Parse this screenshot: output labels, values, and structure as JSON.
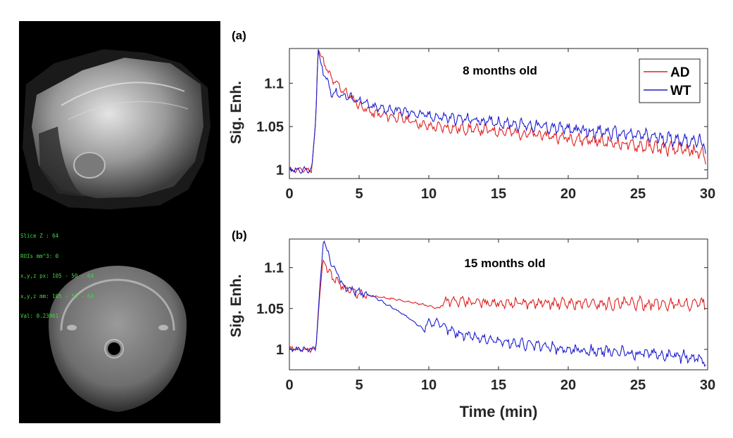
{
  "figure": {
    "mri_overlay": [
      "Slice Z : 64",
      "ROIs mm^3: 0",
      "x,y,z px: 105 - 50 - 64",
      "x,y,z mm: 105 - 50 - 64",
      "Val: 0.23961"
    ]
  },
  "chart_data": [
    {
      "type": "line",
      "panel_label": "(a)",
      "title": "8 months old",
      "xlabel": "",
      "ylabel": "Sig. Enh.",
      "xlim": [
        0,
        30
      ],
      "ylim": [
        0.99,
        1.14
      ],
      "xticks": [
        0,
        5,
        10,
        15,
        20,
        25,
        30
      ],
      "yticks": [
        1,
        1.05,
        1.1
      ],
      "ytick_labels": [
        "1",
        "1.05",
        "1.1"
      ],
      "legend": [
        "AD",
        "WT"
      ],
      "legend_position": "top-right",
      "series": [
        {
          "name": "AD",
          "color": "#e02020",
          "x": [
            0,
            1.6,
            1.9,
            2.05,
            2.3,
            3,
            4,
            5,
            6,
            8,
            10,
            15,
            20,
            25,
            29.7,
            29.9
          ],
          "y": [
            1.0,
            1.0,
            1.06,
            1.14,
            1.13,
            1.105,
            1.09,
            1.075,
            1.065,
            1.06,
            1.05,
            1.045,
            1.037,
            1.028,
            1.02,
            1.005
          ]
        },
        {
          "name": "WT",
          "color": "#1c1cd0",
          "x": [
            0,
            1.6,
            1.9,
            2.05,
            2.3,
            3,
            4,
            5,
            6,
            8,
            10,
            15,
            20,
            25,
            29.7,
            29.9
          ],
          "y": [
            1.0,
            1.0,
            1.06,
            1.14,
            1.12,
            1.09,
            1.085,
            1.08,
            1.072,
            1.068,
            1.062,
            1.055,
            1.047,
            1.04,
            1.032,
            1.015
          ]
        }
      ]
    },
    {
      "type": "line",
      "panel_label": "(b)",
      "title": "15 months old",
      "xlabel": "Time (min)",
      "ylabel": "Sig. Enh.",
      "xlim": [
        0,
        30
      ],
      "ylim": [
        0.975,
        1.135
      ],
      "xticks": [
        0,
        5,
        10,
        15,
        20,
        25,
        30
      ],
      "yticks": [
        1,
        1.05,
        1.1
      ],
      "ytick_labels": [
        "1",
        "1.05",
        "1.1"
      ],
      "series": [
        {
          "name": "AD",
          "color": "#e02020",
          "x": [
            0,
            1.9,
            2.15,
            2.4,
            3,
            4,
            5,
            6,
            8,
            9.5,
            10.8,
            11,
            12,
            15,
            20,
            25,
            29.8
          ],
          "y": [
            1.0,
            1.0,
            1.06,
            1.11,
            1.09,
            1.075,
            1.067,
            1.065,
            1.06,
            1.055,
            1.05,
            1.06,
            1.058,
            1.057,
            1.056,
            1.056,
            1.055
          ]
        },
        {
          "name": "WT",
          "color": "#1c1cd0",
          "x": [
            0,
            1.9,
            2.2,
            2.45,
            3,
            4,
            5,
            6,
            8,
            9.6,
            10,
            12,
            15,
            20,
            25,
            29.5,
            29.9
          ],
          "y": [
            1.0,
            1.0,
            1.08,
            1.135,
            1.105,
            1.075,
            1.07,
            1.065,
            1.045,
            1.025,
            1.035,
            1.02,
            1.01,
            1.0,
            0.995,
            0.99,
            0.98
          ]
        }
      ]
    }
  ]
}
